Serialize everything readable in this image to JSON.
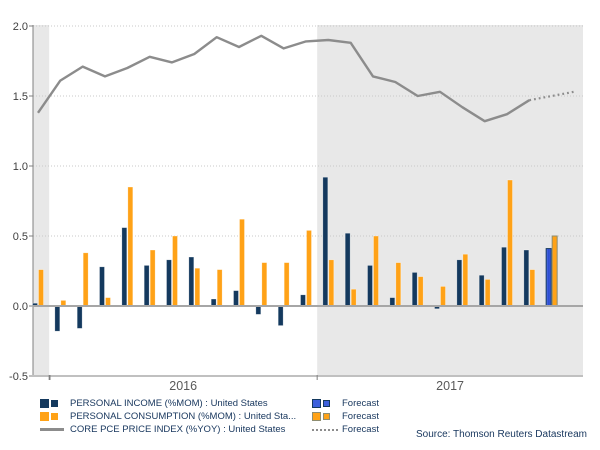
{
  "colors": {
    "income": "#14395e",
    "consumption": "#ffa217",
    "pce_line": "#8c8c8c",
    "forecast_income": "#3c60dc",
    "forecast_consumption_border": "#8e8d71",
    "band": "#e8e8e8",
    "zero_line": "#a6a6a6",
    "grid": "#c9c9c9",
    "axis": "#808080",
    "tick_text": "#3f3f3f",
    "year_text": "#595959",
    "legend_text": "#17365d",
    "source_text": "#17365d"
  },
  "chart_data": {
    "type": "bar+line",
    "title": "",
    "y_tick_labels": [
      "-0.5",
      "0.0",
      "0.5",
      "1.0",
      "1.5",
      "2.0"
    ],
    "ylim": [
      -0.5,
      2.0
    ],
    "grid": "dotted horizontal",
    "x_year_labels": [
      "2016",
      "2017"
    ],
    "shaded_years": [
      "2015",
      "2017"
    ],
    "months": [
      "2015-12",
      "2016-01",
      "2016-02",
      "2016-03",
      "2016-04",
      "2016-05",
      "2016-06",
      "2016-07",
      "2016-08",
      "2016-09",
      "2016-10",
      "2016-11",
      "2016-12",
      "2017-01",
      "2017-02",
      "2017-03",
      "2017-04",
      "2017-05",
      "2017-06",
      "2017-07",
      "2017-08",
      "2017-09",
      "2017-10",
      "2017-11",
      "2017-12"
    ],
    "series": [
      {
        "name": "PERSONAL INCOME (%MOM) : United States",
        "type": "bar",
        "color_key": "income",
        "forecast_from_index": 23,
        "values": [
          0.02,
          -0.18,
          -0.16,
          0.28,
          0.56,
          0.29,
          0.33,
          0.35,
          0.05,
          0.11,
          -0.06,
          -0.14,
          0.08,
          0.92,
          0.52,
          0.29,
          0.06,
          0.24,
          -0.02,
          0.33,
          0.22,
          0.42,
          0.4,
          0.41,
          null
        ]
      },
      {
        "name": "PERSONAL CONSUMPTION (%MOM) : United States",
        "type": "bar",
        "color_key": "consumption",
        "forecast_from_index": 23,
        "values": [
          0.26,
          0.04,
          0.38,
          0.06,
          0.85,
          0.4,
          0.5,
          0.27,
          0.26,
          0.62,
          0.31,
          0.31,
          0.54,
          0.33,
          0.12,
          0.5,
          0.31,
          0.21,
          0.14,
          0.37,
          0.19,
          0.9,
          0.26,
          0.5,
          null
        ]
      },
      {
        "name": "CORE PCE PRICE INDEX (%YOY) : United States",
        "type": "line",
        "color_key": "pce_line",
        "dotted_from_index": 22,
        "values": [
          1.38,
          1.61,
          1.71,
          1.64,
          1.7,
          1.78,
          1.74,
          1.8,
          1.92,
          1.85,
          1.93,
          1.84,
          1.89,
          1.9,
          1.88,
          1.64,
          1.6,
          1.5,
          1.53,
          1.42,
          1.32,
          1.37,
          1.47,
          1.5,
          1.53
        ]
      }
    ],
    "legend_position": "bottom-left"
  },
  "legend": {
    "items": [
      {
        "label": "PERSONAL INCOME (%MOM) : United States",
        "swatch": "navy-bar-squares"
      },
      {
        "label": "PERSONAL CONSUMPTION (%MOM) : United Sta...",
        "swatch": "orange-bar-squares"
      },
      {
        "label": "CORE PCE PRICE INDEX (%YOY) : United States",
        "swatch": "gray-line"
      }
    ],
    "forecast_items": [
      {
        "label": "Forecast",
        "swatch": "blue-bar-squares"
      },
      {
        "label": "Forecast",
        "swatch": "orange-outlined-squares"
      },
      {
        "label": "Forecast",
        "swatch": "dotted-line"
      }
    ]
  },
  "footer": {
    "source": "Source: Thomson Reuters Datastream"
  }
}
